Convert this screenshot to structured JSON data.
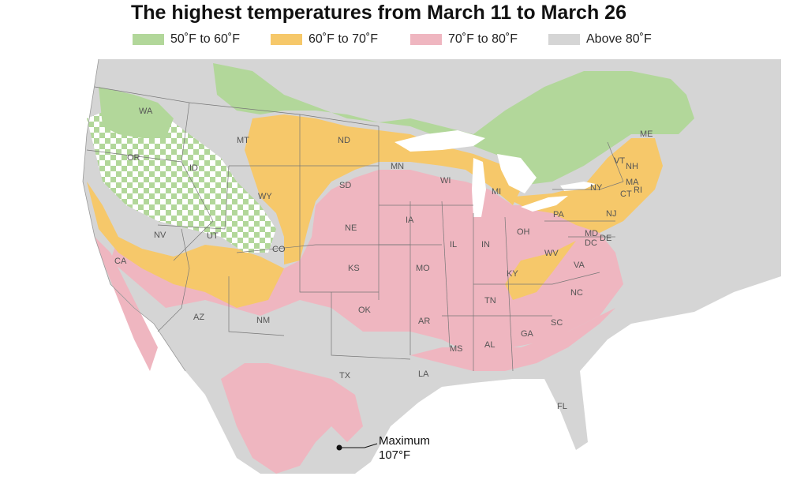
{
  "title": "The highest temperatures from March 11 to March 26",
  "legend": [
    {
      "label": "50˚F to 60˚F",
      "color": "#b2d79a"
    },
    {
      "label": "60˚F to 70˚F",
      "color": "#f6c86a"
    },
    {
      "label": "70˚F to 80˚F",
      "color": "#efb6c0"
    },
    {
      "label": "Above 80˚F",
      "color": "#d5d5d5"
    }
  ],
  "states": [
    "WA",
    "OR",
    "ID",
    "MT",
    "ND",
    "WY",
    "NV",
    "UT",
    "CA",
    "CO",
    "SD",
    "NE",
    "KS",
    "AZ",
    "NM",
    "OK",
    "TX",
    "MN",
    "IA",
    "MO",
    "AR",
    "LA",
    "WI",
    "IL",
    "MI",
    "IN",
    "OH",
    "KY",
    "TN",
    "MS",
    "AL",
    "GA",
    "FL",
    "SC",
    "NC",
    "VA",
    "WV",
    "PA",
    "NY",
    "VT",
    "NH",
    "ME",
    "MA",
    "CT",
    "RI",
    "NJ",
    "DE",
    "MD",
    "DC"
  ],
  "annotation": {
    "line1": "Maximum",
    "line2": "107°F"
  },
  "colors": {
    "water": "#ffffff",
    "border": "#555555"
  }
}
